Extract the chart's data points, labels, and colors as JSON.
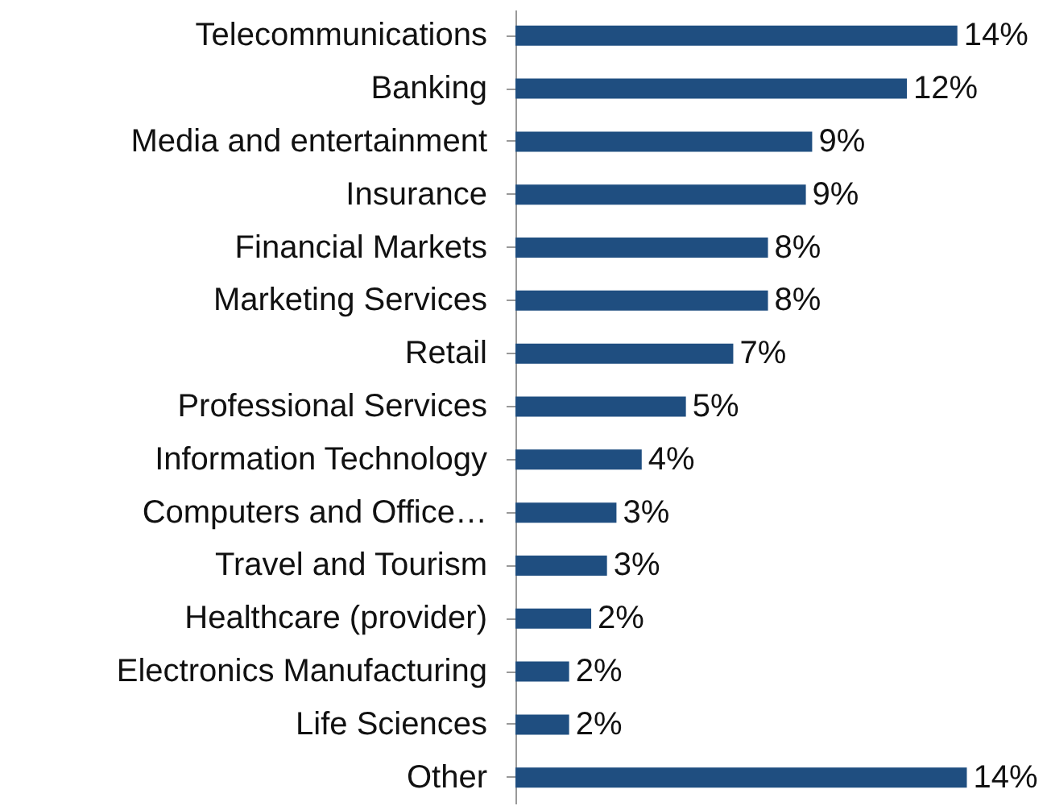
{
  "chart_data": {
    "type": "bar",
    "orientation": "horizontal",
    "value_labels": [
      "14%",
      "12%",
      "9%",
      "9%",
      "8%",
      "8%",
      "7%",
      "5%",
      "4%",
      "3%",
      "3%",
      "2%",
      "2%",
      "2%",
      "14%"
    ],
    "categories": [
      "Telecommunications",
      "Banking",
      "Media and entertainment",
      "Insurance",
      "Financial Markets",
      "Marketing Services",
      "Retail",
      "Professional Services",
      "Information Technology",
      "Computers and Office…",
      "Travel and Tourism",
      "Healthcare (provider)",
      "Electronics Manufacturing",
      "Life Sciences",
      "Other"
    ],
    "values": [
      14.0,
      12.4,
      9.4,
      9.2,
      8.0,
      8.0,
      6.9,
      5.4,
      4.0,
      3.2,
      2.9,
      2.4,
      1.7,
      1.7,
      14.3
    ],
    "color": "#1f4e80"
  }
}
